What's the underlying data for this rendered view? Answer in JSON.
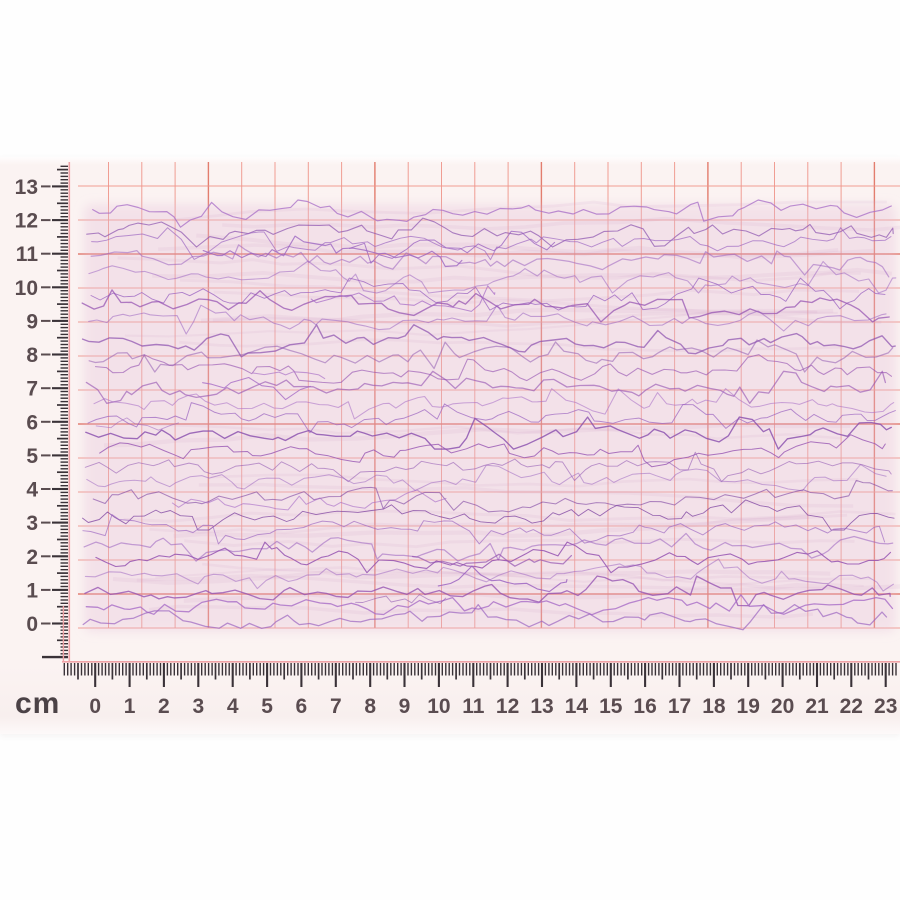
{
  "photo": {
    "background_color": "#fefefe",
    "paper_color": "#fbf3f2"
  },
  "graph_paper": {
    "grid_color": "#ee9488",
    "grid_color_strong": "#e0705f",
    "cell_size_cm": 1,
    "columns": 24,
    "rows": 14
  },
  "rulers_style": {
    "tick_color": "#3a3238",
    "number_color": "#5a4c50",
    "edge_line_color": "#f0a2a6"
  },
  "vertical_ruler": {
    "labels": [
      "13",
      "12",
      "11",
      "10",
      "9",
      "8",
      "7",
      "6",
      "5",
      "4",
      "3",
      "2",
      "1",
      "0"
    ]
  },
  "horizontal_ruler": {
    "unit_label": "cm",
    "labels": [
      "0",
      "1",
      "2",
      "3",
      "4",
      "5",
      "6",
      "7",
      "8",
      "9",
      "10",
      "11",
      "12",
      "13",
      "14",
      "15",
      "16",
      "17",
      "18",
      "19",
      "20",
      "21",
      "22",
      "23"
    ]
  },
  "specimen": {
    "trace_colors": [
      "#8a4fae",
      "#9a62c0",
      "#7b3f9f",
      "#a66bc6",
      "#934fb0"
    ],
    "streak_color": "rgba(205,155,195,0.12)",
    "wash_color": "rgba(226,188,214,0.32)",
    "rows": 27,
    "seed": 20240517
  }
}
